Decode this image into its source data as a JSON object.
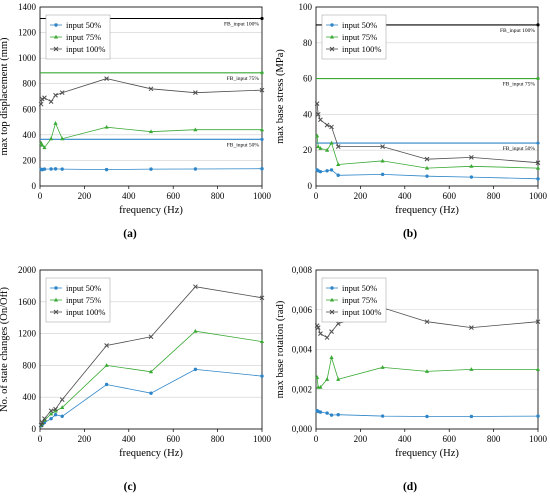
{
  "chart_data": [
    {
      "type": "line",
      "caption": "(a)",
      "xlabel": "frequency  (Hz)",
      "ylabel": "max top displacement (mm)",
      "xlim": [
        0,
        1000
      ],
      "ylim": [
        0,
        1400
      ],
      "xticks": [
        "0",
        "200",
        "400",
        "600",
        "800",
        "1000"
      ],
      "yticks": [
        "0",
        "200",
        "400",
        "600",
        "800",
        "1000",
        "1200",
        "1400"
      ],
      "x": [
        5,
        10,
        20,
        50,
        70,
        100,
        300,
        500,
        700,
        1000
      ],
      "series": [
        {
          "name": "input 50%",
          "color": "#2e86c8",
          "marker": "dot",
          "values": [
            130,
            128,
            132,
            133,
            134,
            132,
            128,
            132,
            133,
            135
          ]
        },
        {
          "name": "input 75%",
          "color": "#3aaa35",
          "marker": "triangle",
          "values": [
            335,
            320,
            300,
            370,
            490,
            370,
            460,
            425,
            440,
            440
          ]
        },
        {
          "name": "input 100%",
          "color": "#4d4d4d",
          "marker": "x",
          "values": [
            640,
            680,
            690,
            660,
            710,
            730,
            840,
            760,
            730,
            750
          ]
        }
      ],
      "reference_lines": [
        {
          "label": "FB_input 100%",
          "value": 1310,
          "color": "#000000"
        },
        {
          "label": "FB_input 75%",
          "value": 885,
          "color": "#3aaa35"
        },
        {
          "label": "FB_input 50%",
          "value": 365,
          "color": "#2e86c8"
        }
      ],
      "legend_position": "top-left"
    },
    {
      "type": "line",
      "caption": "(b)",
      "xlabel": "frequency  (Hz)",
      "ylabel": "max base stress (MPa)",
      "xlim": [
        0,
        1000
      ],
      "ylim": [
        0,
        100
      ],
      "xticks": [
        "0",
        "200",
        "400",
        "600",
        "800",
        "1000"
      ],
      "yticks": [
        "0",
        "20",
        "40",
        "60",
        "80",
        "100"
      ],
      "x": [
        5,
        10,
        20,
        50,
        70,
        100,
        300,
        500,
        700,
        1000
      ],
      "series": [
        {
          "name": "input 50%",
          "color": "#2e86c8",
          "marker": "dot",
          "values": [
            9,
            8.5,
            8,
            8.5,
            9,
            6,
            6.5,
            5.5,
            5,
            4
          ]
        },
        {
          "name": "input 75%",
          "color": "#3aaa35",
          "marker": "triangle",
          "values": [
            28,
            22,
            21,
            20,
            24,
            12,
            14,
            10,
            11,
            10
          ]
        },
        {
          "name": "input 100%",
          "color": "#4d4d4d",
          "marker": "x",
          "values": [
            46,
            40,
            37,
            34,
            33,
            22,
            22,
            15,
            16,
            13
          ]
        }
      ],
      "reference_lines": [
        {
          "label": "FB_input 100%",
          "value": 90,
          "color": "#000000"
        },
        {
          "label": "FB_input 75%",
          "value": 60,
          "color": "#3aaa35"
        },
        {
          "label": "FB_input 50%",
          "value": 24,
          "color": "#2e86c8"
        }
      ],
      "legend_position": "top-left"
    },
    {
      "type": "line",
      "caption": "(c)",
      "xlabel": "frequency  (Hz)",
      "ylabel": "No. of state changes (On/Off)",
      "xlim": [
        0,
        1000
      ],
      "ylim": [
        0,
        2000
      ],
      "xticks": [
        "0",
        "200",
        "400",
        "600",
        "800",
        "1000"
      ],
      "yticks": [
        "0",
        "400",
        "800",
        "1200",
        "1600",
        "2000"
      ],
      "x": [
        5,
        10,
        20,
        50,
        70,
        100,
        300,
        500,
        700,
        1000
      ],
      "series": [
        {
          "name": "input 50%",
          "color": "#2e86c8",
          "marker": "dot",
          "values": [
            40,
            55,
            80,
            130,
            180,
            160,
            560,
            450,
            750,
            665
          ]
        },
        {
          "name": "input 75%",
          "color": "#3aaa35",
          "marker": "triangle",
          "values": [
            45,
            70,
            110,
            190,
            225,
            270,
            800,
            720,
            1230,
            1100
          ]
        },
        {
          "name": "input 100%",
          "color": "#4d4d4d",
          "marker": "x",
          "values": [
            50,
            85,
            130,
            230,
            250,
            370,
            1050,
            1160,
            1790,
            1650
          ]
        }
      ],
      "reference_lines": [],
      "legend_position": "top-left"
    },
    {
      "type": "line",
      "caption": "(d)",
      "xlabel": "frequency  (Hz)",
      "ylabel": "max base rotation (rad)",
      "xlim": [
        0,
        1000
      ],
      "ylim": [
        0,
        0.008
      ],
      "xticks": [
        "0",
        "200",
        "400",
        "600",
        "800",
        "1000"
      ],
      "yticks": [
        "0,000",
        "0,002",
        "0,004",
        "0,006",
        "0,008"
      ],
      "x": [
        5,
        10,
        20,
        50,
        70,
        100,
        300,
        500,
        700,
        1000
      ],
      "series": [
        {
          "name": "input 50%",
          "color": "#2e86c8",
          "marker": "dot",
          "values": [
            0.00092,
            0.00088,
            0.00085,
            0.0008,
            0.0007,
            0.00072,
            0.00065,
            0.00063,
            0.00063,
            0.00065
          ]
        },
        {
          "name": "input 75%",
          "color": "#3aaa35",
          "marker": "triangle",
          "values": [
            0.0026,
            0.0021,
            0.0021,
            0.0025,
            0.0036,
            0.0025,
            0.0031,
            0.0029,
            0.003,
            0.003
          ]
        },
        {
          "name": "input 100%",
          "color": "#4d4d4d",
          "marker": "x",
          "values": [
            0.0052,
            0.0051,
            0.0048,
            0.0046,
            0.0049,
            0.0053,
            0.0061,
            0.0054,
            0.0051,
            0.0054
          ]
        }
      ],
      "reference_lines": [],
      "legend_position": "top-left"
    }
  ]
}
